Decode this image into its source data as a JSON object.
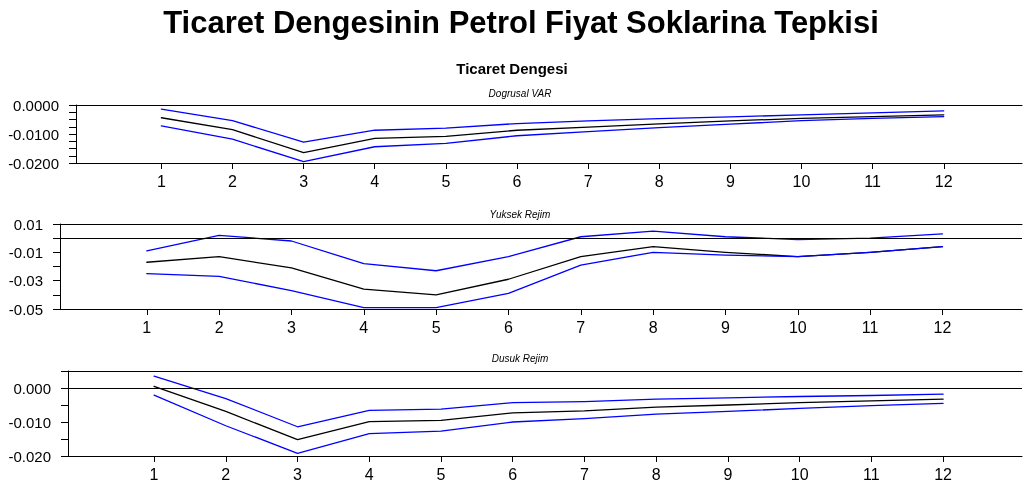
{
  "chart_data": [
    {
      "type": "line",
      "title": "Ticaret Dengesinin Petrol Fiyat Soklarina Tepkisi",
      "subtitle": "Ticaret Dengesi",
      "annotations": [
        "Dogrusal VAR"
      ],
      "x": [
        1,
        2,
        3,
        4,
        5,
        6,
        7,
        8,
        9,
        10,
        11,
        12
      ],
      "series": [
        {
          "color": "#0000ff",
          "values": [
            -0.0014,
            -0.0054,
            -0.0128,
            -0.0087,
            -0.008,
            -0.0064,
            -0.0055,
            -0.0047,
            -0.0041,
            -0.0034,
            -0.0027,
            -0.002
          ]
        },
        {
          "color": "#000000",
          "values": [
            -0.0044,
            -0.0085,
            -0.0164,
            -0.0115,
            -0.0108,
            -0.0087,
            -0.0076,
            -0.0065,
            -0.0055,
            -0.0046,
            -0.004,
            -0.0034
          ]
        },
        {
          "color": "#0000ff",
          "values": [
            -0.0072,
            -0.0118,
            -0.0195,
            -0.0144,
            -0.0132,
            -0.0106,
            -0.0092,
            -0.0078,
            -0.0066,
            -0.0054,
            -0.0046,
            -0.004
          ]
        }
      ],
      "xlim": [
        -0.2,
        13.1
      ],
      "xticks": [
        1,
        2,
        3,
        4,
        5,
        6,
        7,
        8,
        9,
        10,
        11,
        12
      ],
      "ylim": [
        -0.02,
        0
      ],
      "yticks": [
        {
          "value": -0.02,
          "label": "-0.0200"
        },
        {
          "value": -0.0175,
          "label": null
        },
        {
          "value": -0.015,
          "label": null
        },
        {
          "value": -0.0125,
          "label": null
        },
        {
          "value": -0.01,
          "label": "-0.0100"
        },
        {
          "value": -0.0075,
          "label": null
        },
        {
          "value": -0.005,
          "label": null
        },
        {
          "value": -0.0025,
          "label": null
        },
        {
          "value": 0,
          "label": "0.0000"
        }
      ],
      "grid": false,
      "marker": "none",
      "line_style": "solid"
    },
    {
      "type": "line",
      "title": "Yuksek Rejim",
      "x": [
        1,
        2,
        3,
        4,
        5,
        6,
        7,
        8,
        9,
        10,
        11,
        12
      ],
      "series": [
        {
          "color": "#0000ff",
          "values": [
            -0.009,
            0.002,
            -0.002,
            -0.018,
            -0.023,
            -0.013,
            0.001,
            0.005,
            0.001,
            -0.001,
            0.0,
            0.003
          ]
        },
        {
          "color": "#000000",
          "values": [
            -0.017,
            -0.013,
            -0.021,
            -0.036,
            -0.04,
            -0.029,
            -0.013,
            -0.006,
            -0.01,
            -0.013,
            -0.01,
            -0.006
          ]
        },
        {
          "color": "#0000ff",
          "values": [
            -0.025,
            -0.027,
            -0.037,
            -0.049,
            -0.049,
            -0.039,
            -0.019,
            -0.01,
            -0.012,
            -0.013,
            -0.01,
            -0.006
          ]
        }
      ],
      "xlim": [
        -0.2,
        13.1
      ],
      "xticks": [
        1,
        2,
        3,
        4,
        5,
        6,
        7,
        8,
        9,
        10,
        11,
        12
      ],
      "ylim": [
        -0.05,
        0.01
      ],
      "yticks": [
        -0.05,
        {
          "value": -0.04,
          "label": null
        },
        -0.03,
        {
          "value": -0.02,
          "label": null
        },
        -0.01,
        {
          "value": 0,
          "label": null
        },
        0.01
      ],
      "ref_lines": [
        {
          "axis": "y",
          "value": 0,
          "color": "#000000"
        }
      ],
      "grid": false,
      "marker": "none",
      "line_style": "solid"
    },
    {
      "type": "line",
      "title": "Dusuk Rejim",
      "x": [
        1,
        2,
        3,
        4,
        5,
        6,
        7,
        8,
        9,
        10,
        11,
        12
      ],
      "series": [
        {
          "color": "#0000ff",
          "values": [
            0.0035,
            -0.0031,
            -0.0114,
            -0.0066,
            -0.0062,
            -0.0043,
            -0.004,
            -0.0033,
            -0.0029,
            -0.0025,
            -0.0022,
            -0.0018
          ]
        },
        {
          "color": "#000000",
          "values": [
            0.0005,
            -0.0069,
            -0.0152,
            -0.0099,
            -0.0095,
            -0.0073,
            -0.0067,
            -0.0056,
            -0.005,
            -0.0043,
            -0.0038,
            -0.0033
          ]
        },
        {
          "color": "#0000ff",
          "values": [
            -0.0021,
            -0.0111,
            -0.0192,
            -0.0134,
            -0.0127,
            -0.01,
            -0.009,
            -0.0077,
            -0.0069,
            -0.006,
            -0.0052,
            -0.0045
          ]
        }
      ],
      "xlim": [
        -0.2,
        13.1
      ],
      "xticks": [
        1,
        2,
        3,
        4,
        5,
        6,
        7,
        8,
        9,
        10,
        11,
        12
      ],
      "ylim": [
        -0.02,
        0.005
      ],
      "yticks": [
        {
          "value": -0.02,
          "label": "-0.020"
        },
        {
          "value": -0.015,
          "label": null
        },
        {
          "value": -0.01,
          "label": "-0.010"
        },
        {
          "value": -0.005,
          "label": null
        },
        {
          "value": 0,
          "label": "0.000"
        },
        {
          "value": 0.005,
          "label": null
        }
      ],
      "ref_lines": [
        {
          "axis": "y",
          "value": 0,
          "color": "#000000"
        }
      ],
      "grid": false,
      "marker": "none",
      "line_style": "solid"
    }
  ]
}
